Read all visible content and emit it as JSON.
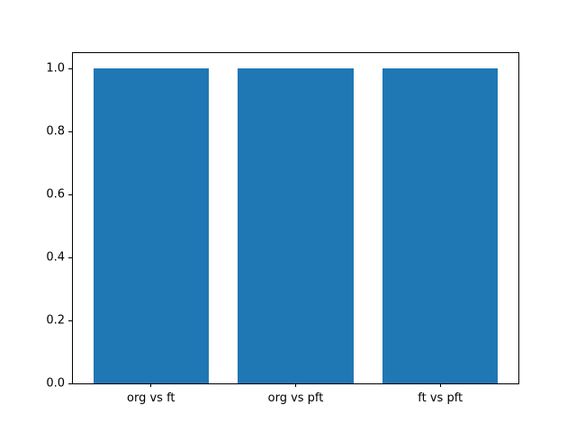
{
  "chart_data": {
    "type": "bar",
    "categories": [
      "org vs ft",
      "org vs pft",
      "ft vs pft"
    ],
    "values": [
      1.0,
      1.0,
      1.0
    ],
    "title": "",
    "xlabel": "",
    "ylabel": "",
    "ylim": [
      0,
      1.05
    ],
    "xlim": [
      -0.54,
      2.54
    ],
    "yticks": [
      0.0,
      0.2,
      0.4,
      0.6,
      0.8,
      1.0
    ],
    "ytick_labels": [
      "0.0",
      "0.2",
      "0.4",
      "0.6",
      "0.8",
      "1.0"
    ],
    "bar_width_fraction": 0.8,
    "bar_color": "#1f77b4",
    "axes_color": "#000000",
    "background_color": "#ffffff",
    "grid": false,
    "legend": null
  }
}
